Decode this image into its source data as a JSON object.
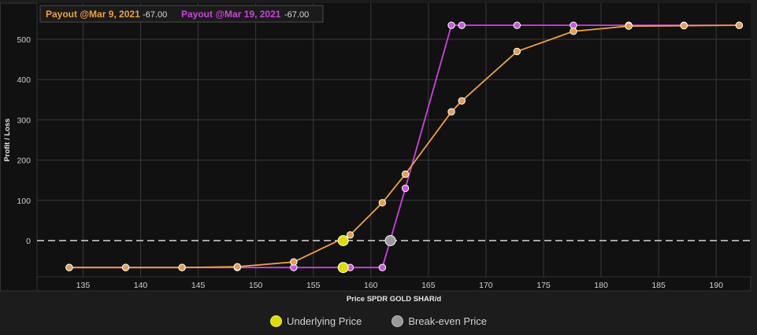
{
  "chart_data": {
    "type": "line",
    "title": "",
    "xlabel": "Price SPDR GOLD SHAR/d",
    "ylabel": "Profit / Loss",
    "xlim": [
      131,
      193
    ],
    "ylim": [
      -90,
      590
    ],
    "x_ticks": [
      135,
      140,
      145,
      150,
      155,
      160,
      165,
      170,
      175,
      180,
      185,
      190
    ],
    "y_ticks": [
      0,
      100,
      200,
      300,
      400,
      500
    ],
    "grid": true,
    "legend_position": "top-left",
    "zero_line": "dashed",
    "series": [
      {
        "name": "Payout @Mar 9, 2021",
        "value_label": "-67.00",
        "color": "#f0a040",
        "marker_color": "#e0a050",
        "x": [
          133.8,
          138.7,
          143.6,
          148.4,
          153.3,
          158.2,
          161.0,
          163.0,
          167.0,
          167.9,
          172.7,
          177.6,
          182.4,
          187.2,
          192.0
        ],
        "y": [
          -67,
          -67,
          -67,
          -65,
          -53,
          14,
          94,
          165,
          320,
          347,
          470,
          520,
          533,
          534,
          535
        ]
      },
      {
        "name": "Payout @Mar 19, 2021",
        "value_label": "-67.00",
        "color": "#cc44dd",
        "marker_color": "#cc55e0",
        "x": [
          133.8,
          138.7,
          143.6,
          148.4,
          153.3,
          158.2,
          161.0,
          163.0,
          167.0,
          167.9,
          172.7,
          177.6,
          182.4,
          187.2,
          192.0
        ],
        "y": [
          -67,
          -67,
          -67,
          -67,
          -67,
          -67,
          -67,
          130,
          535,
          535,
          535,
          535,
          535,
          535,
          535
        ]
      }
    ],
    "markers": {
      "underlying": {
        "label": "Underlying Price",
        "color": "#dddd00",
        "x": 157.6,
        "y_values": [
          0,
          -67
        ]
      },
      "breakeven": {
        "label": "Break-even Price",
        "color": "#999999",
        "x": 161.7,
        "y": 0
      }
    }
  }
}
